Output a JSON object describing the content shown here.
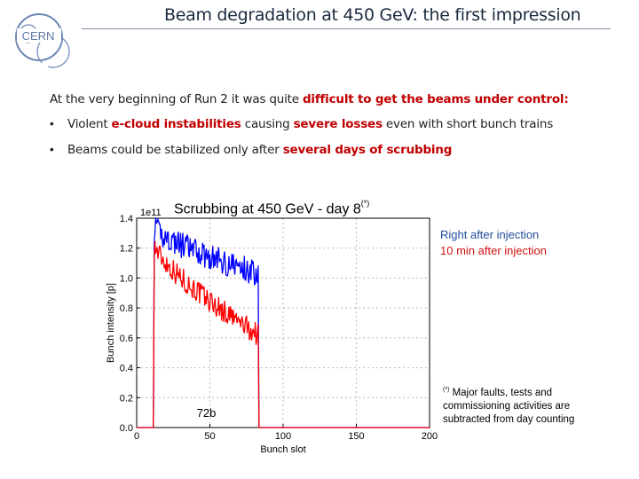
{
  "logo": {
    "text": "CERN"
  },
  "title": "Beam degradation at 450 GeV: the first impression",
  "intro": {
    "prefix": "At the very beginning of Run 2 it was quite ",
    "highlight": "difficult to get the beams under control:"
  },
  "bullets": [
    {
      "marker": "•",
      "t1": "Violent ",
      "h1": "e-cloud instabilities",
      "t2": " causing ",
      "h2": "severe losses",
      "t3": " even with short bunch trains"
    },
    {
      "marker": "•",
      "t1": "Beams could be stabilized only after ",
      "h1": "several days of scrubbing",
      "t2": "",
      "h2": "",
      "t3": ""
    }
  ],
  "colors": {
    "accent": "#c00000",
    "series_blue": "#0000ff",
    "series_red": "#ff0000"
  },
  "chart_data": {
    "type": "line",
    "title": "Scrubbing at 450 GeV - day 8",
    "title_sup": "(*)",
    "xlabel": "Bunch slot",
    "ylabel": "Bunch intensity [p]",
    "y_multiplier": "1e11",
    "xlim": [
      0,
      200
    ],
    "ylim": [
      0,
      1.4
    ],
    "x_ticks": [
      0,
      50,
      100,
      150,
      200
    ],
    "y_ticks": [
      0.0,
      0.2,
      0.4,
      0.6,
      0.8,
      1.0,
      1.2,
      1.4
    ],
    "y_tick_labels": [
      "0.0",
      "0.2",
      "0.4",
      "0.6",
      "0.8",
      "1.0",
      "1.2",
      "1.4"
    ],
    "annotation": "72b",
    "series": [
      {
        "name": "Right after injection",
        "color": "#0000ff",
        "x_start": 12,
        "x_end": 83,
        "y_start": 1.33,
        "y_end": 1.03,
        "noise": 0.09
      },
      {
        "name": "10 min after injection",
        "color": "#ff0000",
        "x_start": 12,
        "x_end": 83,
        "y_start": 1.22,
        "y_end": 0.62,
        "noise": 0.08
      }
    ]
  },
  "note": {
    "sup": "(*)",
    "text": " Major faults, tests and commissioning activities are subtracted from day counting"
  }
}
